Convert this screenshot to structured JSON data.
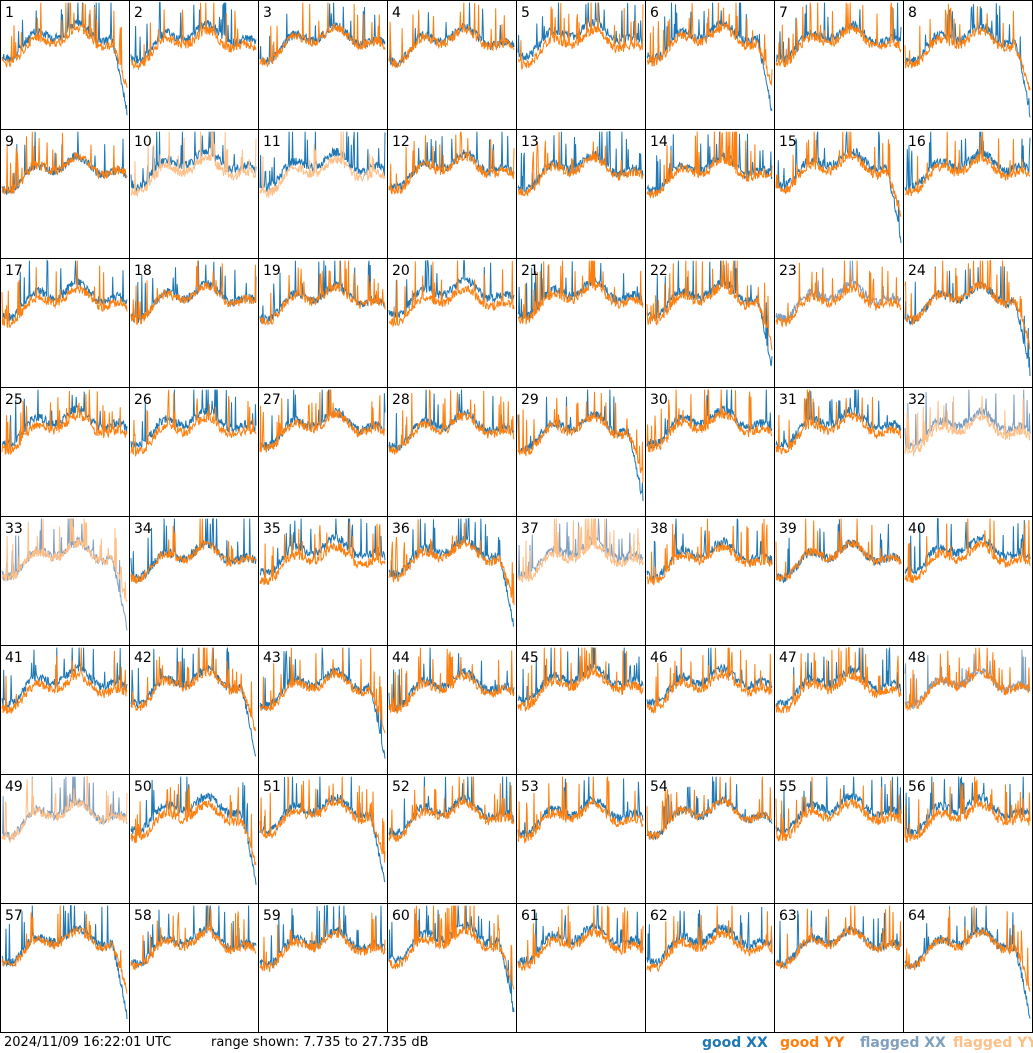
{
  "footer": {
    "timestamp": "2024/11/09 16:22:01 UTC",
    "range": "range shown: 7.735 to 27.735 dB"
  },
  "legend": {
    "good_xx": "good XX",
    "good_yy": "good YY",
    "flagged_xx": "flagged XX",
    "flagged_yy": "flagged YY"
  },
  "colors": {
    "good_xx": "#1f77b4",
    "good_yy": "#ff7f0e",
    "flagged_xx": "#7f9fbf",
    "flagged_yy": "#ffbf87"
  },
  "chart_data": {
    "type": "line",
    "description": "8x8 grid of per-input bandpass spectra (XX and YY polarizations)",
    "ylim": [
      7.735,
      27.735
    ],
    "y_units": "dB",
    "panel_labels": [
      "1",
      "2",
      "3",
      "4",
      "5",
      "6",
      "7",
      "8",
      "9",
      "10",
      "11",
      "12",
      "13",
      "14",
      "15",
      "16",
      "17",
      "18",
      "19",
      "20",
      "21",
      "22",
      "23",
      "24",
      "25",
      "26",
      "27",
      "28",
      "29",
      "30",
      "31",
      "32",
      "33",
      "34",
      "35",
      "36",
      "37",
      "38",
      "39",
      "40",
      "41",
      "42",
      "43",
      "44",
      "45",
      "46",
      "47",
      "48",
      "49",
      "50",
      "51",
      "52",
      "53",
      "54",
      "55",
      "56",
      "57",
      "58",
      "59",
      "60",
      "61",
      "62",
      "63",
      "64"
    ],
    "panel_states": {
      "xx_flagged_panels": [
        23,
        32,
        33,
        37,
        48,
        49
      ],
      "yy_flagged_panels": [
        10,
        11,
        32,
        33,
        37,
        49
      ]
    }
  }
}
